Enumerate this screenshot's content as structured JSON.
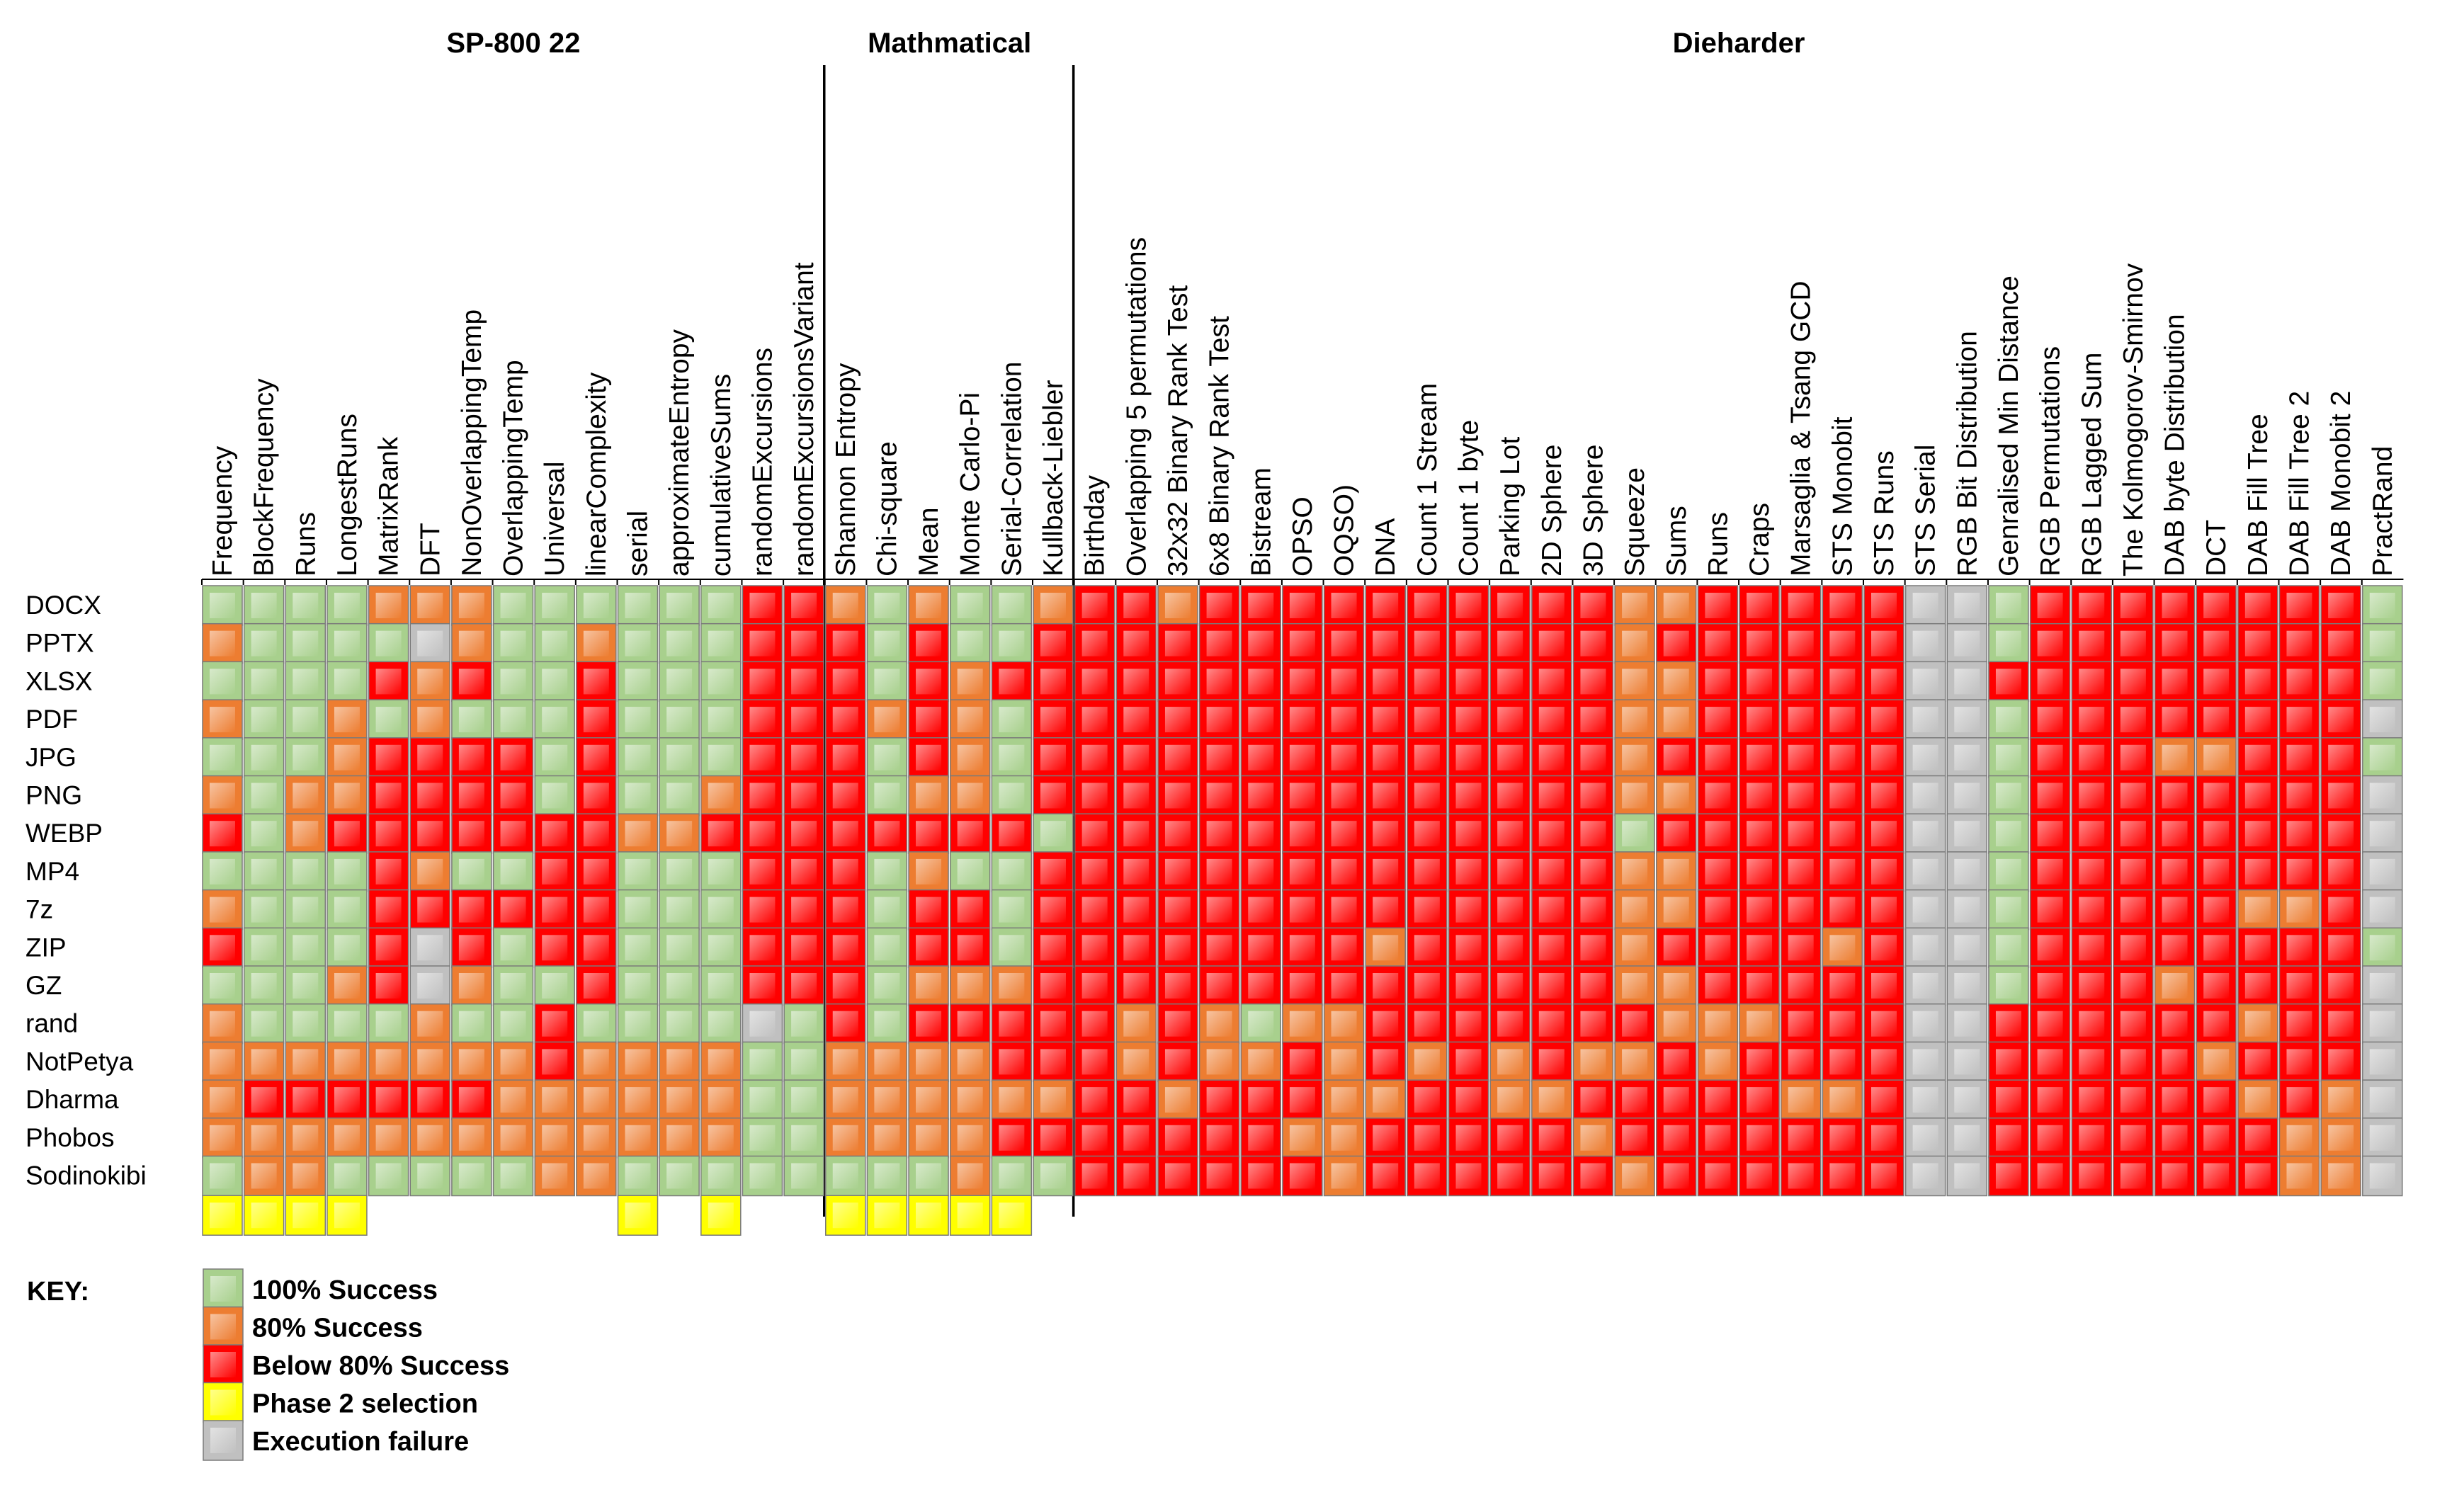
{
  "chart_data": {
    "type": "heatmap",
    "title": "",
    "groups": [
      {
        "name": "SP-800 22",
        "span": [
          0,
          14
        ]
      },
      {
        "name": "Mathmatical",
        "span": [
          15,
          20
        ]
      },
      {
        "name": "Dieharder",
        "span": [
          21,
          52
        ]
      }
    ],
    "columns": [
      "Frequency",
      "BlockFrequency",
      "Runs",
      "LongestRuns",
      "MatrixRank",
      "DFT",
      "NonOverlappingTemp",
      "OverlappingTemp",
      "Universal",
      "linearComplexity",
      "serial",
      "approximateEntropy",
      "cumulativeSums",
      "randomExcursions",
      "randomExcursionsVariant",
      "Shannon  Entropy",
      "Chi-square",
      "Mean",
      "Monte Carlo-Pi",
      "Serial-Correlation",
      "Kullback-Liebler",
      "Birthday",
      "Overlapping 5 permutations",
      "32x32 Binary Rank Test",
      "6x8 Binary Rank Test",
      "Bistream",
      "OPSO",
      "OQSO)",
      "DNA",
      "Count 1 Stream",
      "Count 1 byte",
      "Parking Lot",
      "2D Sphere",
      "3D Sphere",
      "Squeeze",
      "Sums",
      "Runs",
      "Craps",
      "Marsaglia & Tsang GCD",
      "STS Monobit",
      "STS Runs",
      "STS Serial",
      "RGB Bit Distribution",
      "Genralised Min Distance",
      "RGB Permutations",
      "RGB Lagged Sum",
      "The Kolmogorov-Smirnov",
      "DAB byte Distribution",
      "DCT",
      "DAB Fill Tree",
      "DAB Fill Tree 2",
      "DAB Monobit 2",
      "PractRand"
    ],
    "rows": [
      "DOCX",
      "PPTX",
      "XLSX",
      "PDF",
      "JPG",
      "PNG",
      "WEBP",
      "MP4",
      "7z",
      "ZIP",
      "GZ",
      "rand",
      "NotPetya",
      "Dharma",
      "Phobos",
      "Sodinokibi"
    ],
    "legend": [
      {
        "code": "G",
        "label": "100% Success",
        "color": "#a8d08d"
      },
      {
        "code": "O",
        "label": "80% Success",
        "color": "#ed7d31"
      },
      {
        "code": "R",
        "label": "Below 80% Success",
        "color": "#ff0000"
      },
      {
        "code": "Y",
        "label": "Phase 2 selection",
        "color": "#ffff00"
      },
      {
        "code": "X",
        "label": "Execution failure",
        "color": "#c0c0c0"
      }
    ],
    "cells": [
      "GGGGOOOGGGGGGRROGOGGORRORRRRRRRRRROORRRRRXXGRRRRRRRRG",
      "OGGGGXOGGOGGGRRRGRGGRRRRRRRRRRRRRRORRRRRRXXGRRRRRRRRG",
      "GGGGRORGGRGGGRRRGRORRRRRRRRRRRRRRROORRRRRXXRRRRRRRRRG",
      "OGGOGOGGGRGGGRRROROGRRRRRRRRRRRRRROORRRRRXXGRRRRRRRRX",
      "GGGORRRRGRGGGRRRGROGRRRRRRRRRRRRRRORRRRRRXXGRRROORRRG",
      "OGOORRRRGRGGORRRGOOGRRRRRRRRRRRRRROORRRRRXXGRRRRRRRRX",
      "RGORRRRRRROORRRRRRRRGRRRRRRRRRRRRRGRRRRRRXXGRRRRRRRRX",
      "GGGGROGGRRGGGRRRGOGGRRRRRRRRRRRRRROORRRRRXXGRRRRRRRRX",
      "OGGGRRRRRRGGGRRRGRRGRRRRRRRRRRRRRROORRRRRXXGRRRRROORX",
      "RGGGRXRGRRGGGRRRGRRGRRRRRRRRORRRRRORRRRORXXGRRRRRRRRG",
      "GGGORXOGGRGGGRRRGOOORRRRRRRRRRRRRROORRRRRXXGRRRORRRRX",
      "OGGGGOGGRGGGGXGRGRRRRROROGOORRRRRRROOORRRXXRRRRRRORRX",
      "OOOOOOOOROOOOGGOOOORRROROOROROROROORORRRRXXRRRRRORRRX",
      "ORRRRRROOOOOOGGOOOOOORRORRROORROORRRRROORXXRRRRRROROX",
      "OOOOOOOOOOOOOGGOOOORRRRRRROORRRRRORRRRRRRXXRRRRRRROOX",
      "GOOGGGGGOOGGGGGGGGOGGRRRRRRORRRRRRORRRRRRXXRRRRRRROOX"
    ],
    "phase2_selection": [
      "Frequency",
      "BlockFrequency",
      "Runs",
      "LongestRuns",
      "serial",
      "cumulativeSums",
      "Shannon  Entropy",
      "Chi-square",
      "Mean",
      "Monte Carlo-Pi",
      "Serial-Correlation"
    ],
    "key_label": "KEY:"
  }
}
